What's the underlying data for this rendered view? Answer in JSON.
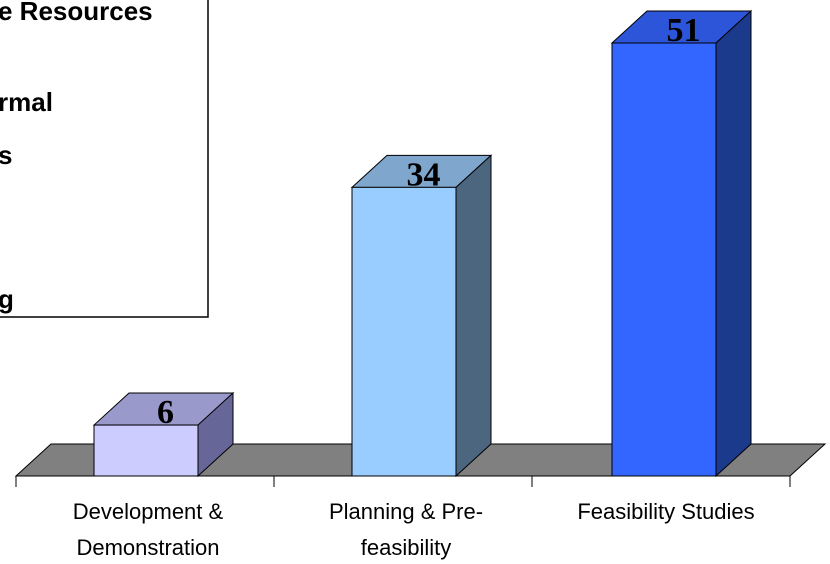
{
  "chart_data": {
    "type": "bar",
    "style": "3d-column",
    "categories": [
      "Development & Demonstration",
      "Planning & Pre-feasibility",
      "Feasibility Studies"
    ],
    "category_lines": [
      [
        "Development &",
        "Demonstration"
      ],
      [
        "Planning & Pre-",
        "feasibility"
      ],
      [
        "Feasibility Studies"
      ]
    ],
    "values": [
      6,
      34,
      51
    ],
    "data_labels": [
      "6",
      "34",
      "51"
    ],
    "ylim": [
      0,
      51
    ],
    "grid": false,
    "legend_placement": "top-left (cropped)",
    "legend_visible_text": [
      "e Resources",
      "rmal",
      "s",
      "g"
    ],
    "colors": {
      "bars": [
        {
          "front": "#ccccff",
          "top": "#9999cc",
          "side": "#666699"
        },
        {
          "front": "#99ccff",
          "top": "#7fa6cc",
          "side": "#4d6680"
        },
        {
          "front": "#3366ff",
          "top": "#2c55d9",
          "side": "#1c3a8c"
        }
      ],
      "floor": "#808080",
      "axis": "#000000"
    }
  }
}
